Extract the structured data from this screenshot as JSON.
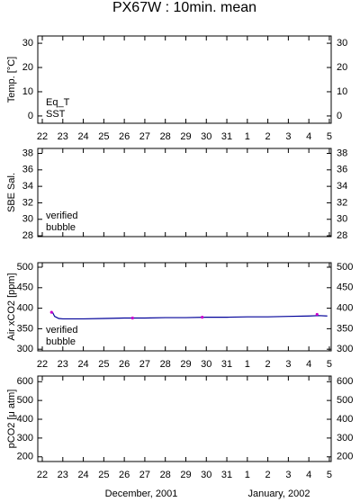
{
  "title": "PX67W : 10min. mean",
  "chart_data": [
    {
      "type": "line",
      "ylabel": "Temp. [°C]",
      "xlim": [
        21.78,
        36.09
      ],
      "xticks": [
        22,
        23,
        24,
        25,
        26,
        27,
        28,
        29,
        30,
        31,
        {
          "value": 32,
          "label": "1"
        },
        {
          "value": 33,
          "label": "2"
        },
        {
          "value": 34,
          "label": "3"
        },
        {
          "value": 35,
          "label": "4"
        },
        {
          "value": 36,
          "label": "5"
        }
      ],
      "show_xtick_labels": true,
      "ylim": [
        -3,
        33
      ],
      "yticks": [
        0,
        10,
        20,
        30
      ],
      "series": [
        {
          "name": "Eq_T",
          "color": "#cc0000",
          "style": "line",
          "x": [],
          "values": []
        },
        {
          "name": "SST",
          "color": "#000099",
          "style": "line",
          "x": [],
          "values": []
        }
      ]
    },
    {
      "type": "line",
      "ylabel": "SBE Sal.",
      "xlim": [
        21.78,
        36.09
      ],
      "xticks": [
        22,
        23,
        24,
        25,
        26,
        27,
        28,
        29,
        30,
        31,
        {
          "value": 32,
          "label": "1"
        },
        {
          "value": 33,
          "label": "2"
        },
        {
          "value": 34,
          "label": "3"
        },
        {
          "value": 35,
          "label": "4"
        },
        {
          "value": 36,
          "label": "5"
        }
      ],
      "show_xtick_labels": false,
      "ylim": [
        27.9,
        38.6
      ],
      "yticks": [
        28,
        30,
        32,
        34,
        36,
        38
      ],
      "series": [
        {
          "name": "verified",
          "color": "#000099",
          "style": "line",
          "x": [],
          "values": []
        },
        {
          "name": "bubble",
          "color": "#cc00cc",
          "style": "points",
          "x": [],
          "values": []
        }
      ]
    },
    {
      "type": "line",
      "ylabel": "Air xCO2 [ppm]",
      "xlim": [
        21.78,
        36.09
      ],
      "xticks": [
        22,
        23,
        24,
        25,
        26,
        27,
        28,
        29,
        30,
        31,
        {
          "value": 32,
          "label": "1"
        },
        {
          "value": 33,
          "label": "2"
        },
        {
          "value": 34,
          "label": "3"
        },
        {
          "value": 35,
          "label": "4"
        },
        {
          "value": 36,
          "label": "5"
        }
      ],
      "show_xtick_labels": true,
      "ylim": [
        296,
        511
      ],
      "yticks": [
        300,
        350,
        400,
        450,
        500
      ],
      "series": [
        {
          "name": "verified",
          "color": "#000099",
          "style": "line",
          "x": [
            22.5,
            22.6,
            22.8,
            23,
            24,
            25,
            26,
            27,
            28,
            29,
            30,
            31,
            32,
            33,
            34,
            35,
            35.5,
            35.9
          ],
          "values": [
            390,
            380,
            375,
            374,
            374,
            375,
            376,
            376,
            377,
            377,
            378,
            378,
            379,
            379,
            380,
            381,
            382,
            381
          ]
        },
        {
          "name": "bubble",
          "color": "#cc00cc",
          "style": "points",
          "x": [
            22.45,
            26.4,
            29.8,
            35.4
          ],
          "values": [
            390,
            376,
            378,
            385
          ]
        }
      ]
    },
    {
      "type": "line",
      "ylabel": "pCO2 [μ atm]",
      "xlim": [
        21.78,
        36.09
      ],
      "xticks": [
        22,
        23,
        24,
        25,
        26,
        27,
        28,
        29,
        30,
        31,
        {
          "value": 32,
          "label": "1"
        },
        {
          "value": 33,
          "label": "2"
        },
        {
          "value": 34,
          "label": "3"
        },
        {
          "value": 35,
          "label": "4"
        },
        {
          "value": 36,
          "label": "5"
        }
      ],
      "show_xtick_labels": true,
      "ylim": [
        175,
        630
      ],
      "yticks": [
        200,
        300,
        400,
        500,
        600
      ],
      "annotations": [
        "December, 2001",
        "January, 2002"
      ],
      "series": []
    }
  ]
}
